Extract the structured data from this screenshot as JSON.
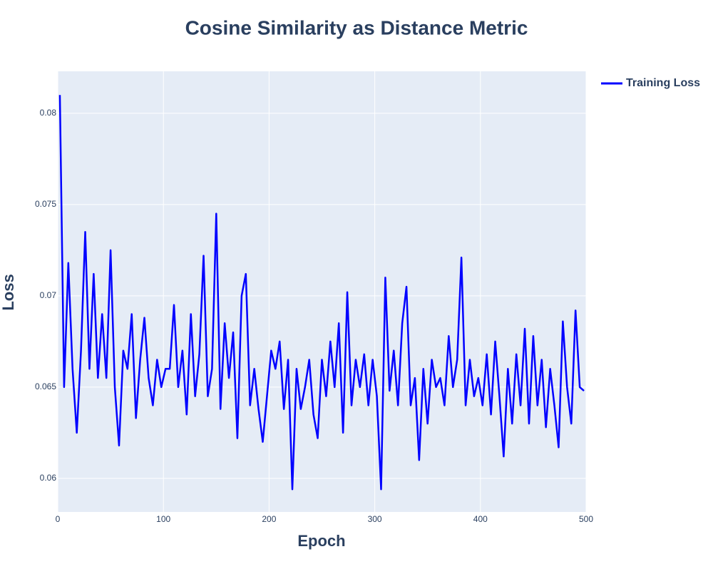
{
  "chart_data": {
    "type": "line",
    "title": "Cosine Similarity as Distance Metric",
    "x_label": "Epoch",
    "y_label": "Loss",
    "x": [
      2,
      6,
      10,
      14,
      18,
      22,
      26,
      30,
      34,
      38,
      42,
      46,
      50,
      54,
      58,
      62,
      66,
      70,
      74,
      78,
      82,
      86,
      90,
      94,
      98,
      102,
      106,
      110,
      114,
      118,
      122,
      126,
      130,
      134,
      138,
      142,
      146,
      150,
      154,
      158,
      162,
      166,
      170,
      174,
      178,
      182,
      186,
      190,
      194,
      198,
      202,
      206,
      210,
      214,
      218,
      222,
      226,
      230,
      234,
      238,
      242,
      246,
      250,
      254,
      258,
      262,
      266,
      270,
      274,
      278,
      282,
      286,
      290,
      294,
      298,
      302,
      306,
      310,
      314,
      318,
      322,
      326,
      330,
      334,
      338,
      342,
      346,
      350,
      354,
      358,
      362,
      366,
      370,
      374,
      378,
      382,
      386,
      390,
      394,
      398,
      402,
      406,
      410,
      414,
      418,
      422,
      426,
      430,
      434,
      438,
      442,
      446,
      450,
      454,
      458,
      462,
      466,
      470,
      474,
      478,
      482,
      486,
      490,
      494,
      498
    ],
    "series": [
      {
        "name": "Training Loss",
        "color": "#0000ff",
        "values": [
          0.081,
          0.065,
          0.0718,
          0.066,
          0.0625,
          0.067,
          0.0735,
          0.066,
          0.0712,
          0.0655,
          0.069,
          0.0655,
          0.0725,
          0.065,
          0.0618,
          0.067,
          0.066,
          0.069,
          0.0633,
          0.0665,
          0.0688,
          0.0655,
          0.064,
          0.0665,
          0.065,
          0.066,
          0.066,
          0.0695,
          0.065,
          0.067,
          0.0635,
          0.069,
          0.0645,
          0.0668,
          0.0722,
          0.0645,
          0.066,
          0.0745,
          0.0638,
          0.0685,
          0.0655,
          0.068,
          0.0622,
          0.07,
          0.0712,
          0.064,
          0.066,
          0.0638,
          0.062,
          0.0645,
          0.067,
          0.066,
          0.0675,
          0.0638,
          0.0665,
          0.0594,
          0.066,
          0.0638,
          0.065,
          0.0665,
          0.0635,
          0.0622,
          0.0665,
          0.0645,
          0.0675,
          0.065,
          0.0685,
          0.0625,
          0.0702,
          0.064,
          0.0665,
          0.065,
          0.0668,
          0.064,
          0.0665,
          0.0645,
          0.0594,
          0.071,
          0.0648,
          0.067,
          0.064,
          0.0685,
          0.0705,
          0.064,
          0.0655,
          0.061,
          0.066,
          0.063,
          0.0665,
          0.065,
          0.0655,
          0.064,
          0.0678,
          0.065,
          0.0665,
          0.0721,
          0.064,
          0.0665,
          0.0645,
          0.0655,
          0.064,
          0.0668,
          0.0635,
          0.0675,
          0.0645,
          0.0612,
          0.066,
          0.063,
          0.0668,
          0.064,
          0.0682,
          0.063,
          0.0678,
          0.064,
          0.0665,
          0.0628,
          0.066,
          0.064,
          0.0617,
          0.0686,
          0.065,
          0.063,
          0.0692,
          0.065,
          0.0648
        ]
      }
    ],
    "xlim": [
      0,
      500
    ],
    "xticks": [
      0,
      100,
      200,
      300,
      400,
      500
    ],
    "ylim": [
      0.05816,
      0.0823
    ],
    "yticks": [
      0.06,
      0.065,
      0.07,
      0.075,
      0.08
    ],
    "grid": true,
    "legend": "right"
  }
}
